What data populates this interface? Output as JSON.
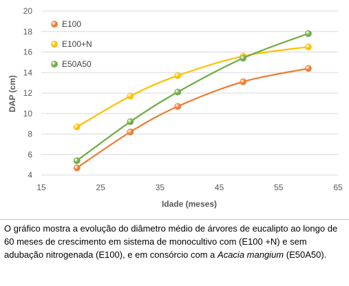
{
  "chart_data": {
    "type": "line",
    "xlabel": "Idade (meses)",
    "ylabel": "DAP (cm)",
    "xlim": [
      15,
      65
    ],
    "ylim": [
      4,
      20
    ],
    "xticks": [
      15,
      25,
      35,
      45,
      55,
      65
    ],
    "yticks": [
      4,
      6,
      8,
      10,
      12,
      14,
      16,
      18,
      20
    ],
    "grid": "horizontal",
    "legend_position": "top-left",
    "x": [
      21,
      30,
      38,
      49,
      60
    ],
    "series": [
      {
        "name": "E100",
        "color": "#ED7D31",
        "values": [
          4.7,
          8.2,
          10.7,
          13.1,
          14.4
        ]
      },
      {
        "name": "E100+N",
        "color": "#FFC000",
        "values": [
          8.7,
          11.7,
          13.7,
          15.6,
          16.5
        ]
      },
      {
        "name": "E50A50",
        "color": "#70AD47",
        "values": [
          5.4,
          9.2,
          12.1,
          15.4,
          17.8
        ]
      }
    ]
  },
  "caption": {
    "part1": "O gráfico mostra a evolução do diâmetro médio de árvores de eucalipto ao longo de 60 meses de crescimento em sistema de monocultivo com (E100 +N) e sem adubação nitrogenada (E100), e em consórcio com a ",
    "italic": "Acacia mangium",
    "part2": " (E50A50)."
  }
}
